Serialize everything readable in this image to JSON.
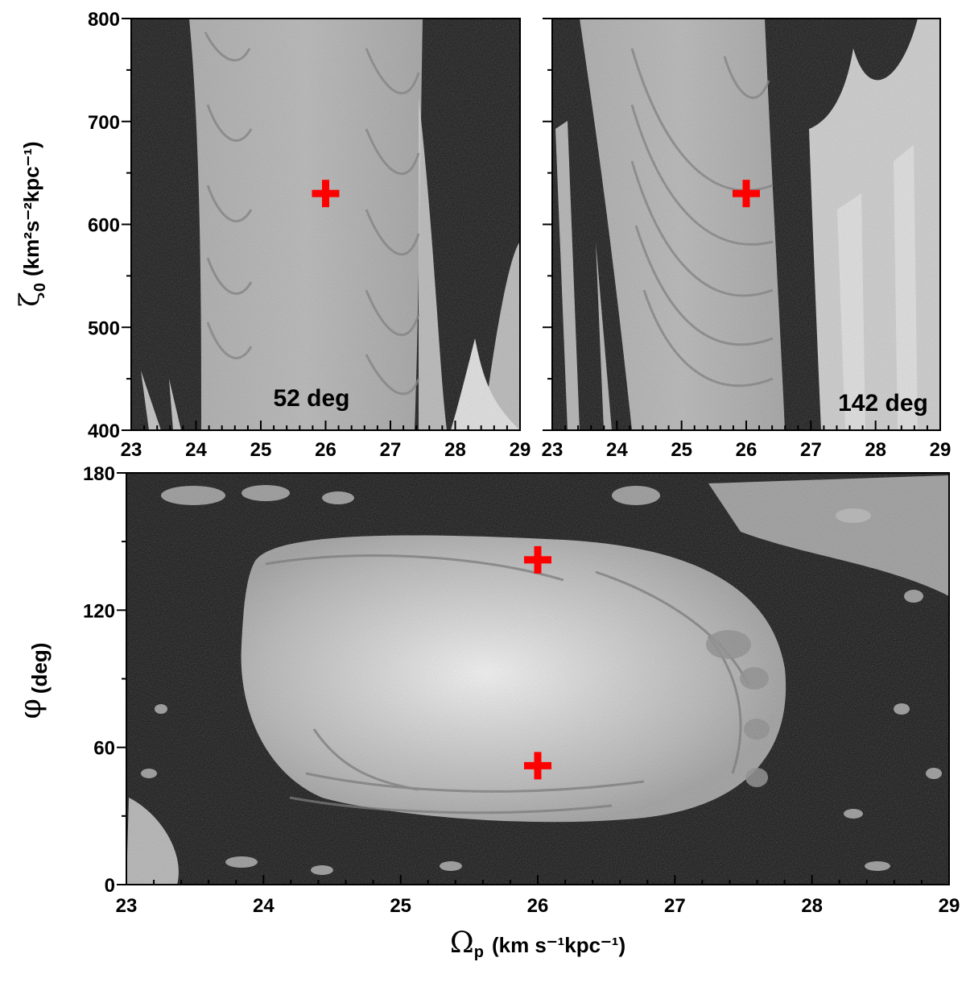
{
  "chart_data": [
    {
      "type": "heatmap",
      "panel": "top-left",
      "annotation": "52 deg",
      "x_ticks": [
        "23",
        "24",
        "25",
        "26",
        "27",
        "28",
        "29"
      ],
      "y_ticks": [
        "400",
        "500",
        "600",
        "700",
        "800"
      ],
      "xlim": [
        23,
        29
      ],
      "ylim": [
        400,
        800
      ],
      "markers": [
        {
          "x": 26.0,
          "y": 630,
          "color": "#ff0000",
          "shape": "cross"
        }
      ],
      "colormap": "grayscale"
    },
    {
      "type": "heatmap",
      "panel": "top-right",
      "annotation": "142 deg",
      "x_ticks": [
        "23",
        "24",
        "25",
        "26",
        "27",
        "28",
        "29"
      ],
      "xlim": [
        23,
        29
      ],
      "ylim": [
        400,
        800
      ],
      "markers": [
        {
          "x": 26.0,
          "y": 630,
          "color": "#ff0000",
          "shape": "cross"
        }
      ],
      "colormap": "grayscale"
    },
    {
      "type": "heatmap",
      "panel": "bottom",
      "x_ticks": [
        "23",
        "24",
        "25",
        "26",
        "27",
        "28",
        "29"
      ],
      "y_ticks": [
        "0",
        "60",
        "120",
        "180"
      ],
      "xlim": [
        23,
        29
      ],
      "ylim": [
        0,
        180
      ],
      "markers": [
        {
          "x": 26.0,
          "y": 142,
          "color": "#ff0000",
          "shape": "cross"
        },
        {
          "x": 26.0,
          "y": 52,
          "color": "#ff0000",
          "shape": "cross"
        }
      ],
      "colormap": "grayscale"
    }
  ],
  "labels": {
    "zeta_symbol": "ζ",
    "zeta_sub": "0",
    "zeta_units": "(km²s⁻²kpc⁻¹)",
    "phi_symbol": "φ",
    "phi_units": "(deg)",
    "omega_symbol": "Ω",
    "omega_sub": "p",
    "omega_units": "(km s⁻¹kpc⁻¹)"
  }
}
